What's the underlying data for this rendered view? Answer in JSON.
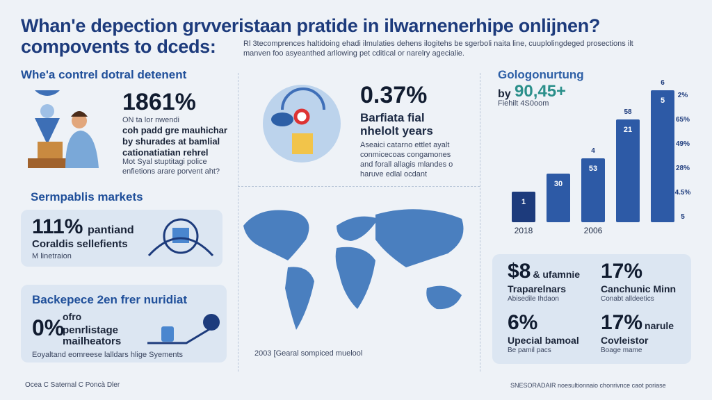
{
  "header": {
    "title_line1": "Whan'e depection grvveristaan pratide in ilwarnenerhipe onlijnen?",
    "title_line2": "compovents to dceds:",
    "intro": "Rl 3tecomprences haltidoing ehadi ilmulaties dehens ilogitehs be sgerboli naita line, cuuplolingdeged prosections ilt manven foo asyeanthed arllowing pet cditical or narelry agecialie."
  },
  "panel1": {
    "heading": "Whe'a contrel dotral detenent",
    "stat": "1861%",
    "lines": [
      "ON ta lor nwendi",
      "coh padd gre mauhichar",
      "by shurades at bamlial",
      "cationatiatian rehrel"
    ],
    "note": "Mot Syal stuptitagi police enfietions arare porvent aht?"
  },
  "panel2": {
    "stat": "0.37%",
    "caption": "Barfiata fial nhelolt years",
    "note": "Aseaici catarno ettlet ayalt conmicecoas congamones and forall allagis mlandes o haruve edlal ocdant"
  },
  "panel3": {
    "heading": "Sermpablis markets",
    "stat": "111%",
    "label": "pantiand",
    "sub": "Coraldis sellefients",
    "note": "M linetraion"
  },
  "panel4": {
    "heading": "Backepece 2en frer nuridiat",
    "stat": "0%",
    "superscript": "ofro",
    "label": "penrlistage mailheators",
    "note": "Eoyaltand eomreese lalldars hlige Syements"
  },
  "map": {
    "caption": "2003 [Gearal sompiced muelool"
  },
  "chart_panel": {
    "title": "Gologonurtung",
    "by": "by",
    "figure": "90,45+",
    "note": "Fiehilt 4S0oom",
    "top_labels": [
      "4",
      "58",
      "6"
    ],
    "bar_labels": [
      "1",
      "30",
      "53",
      "21",
      "5"
    ],
    "x_labels": [
      "2018",
      "2006"
    ],
    "right_labels": [
      "2%",
      "65%",
      "49%",
      "28%",
      "4.5%",
      "5"
    ]
  },
  "stats_box": {
    "items": [
      {
        "stat": "$8",
        "stat_suffix": "& ufamnie",
        "label": "Traparelnars",
        "note": "Abisedile Ihdaon"
      },
      {
        "stat": "17%",
        "stat_suffix": "",
        "label": "Canchunic Minn",
        "note": "Conabt alldeetics"
      },
      {
        "stat": "6%",
        "stat_suffix": "",
        "label": "Upecial bamoal",
        "note": "Be pamil pacs"
      },
      {
        "stat": "17%",
        "stat_suffix": "narule",
        "label": "Covleistor",
        "note": "Boage mame"
      }
    ]
  },
  "footer": {
    "left": "Ocea C Saternal C Poncà Dler",
    "right": "SNESORADAIR  noesultionnaio chonrivnce caot poriase"
  }
}
